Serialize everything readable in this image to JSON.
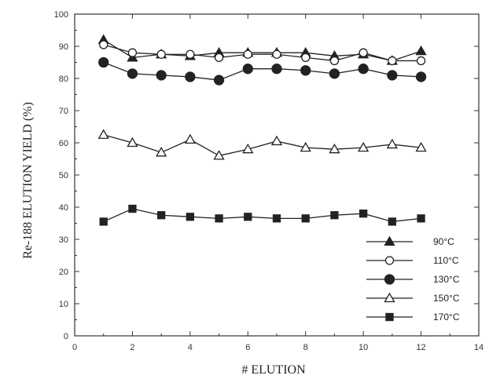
{
  "chart_data": {
    "type": "line",
    "xlabel": "# ELUTION",
    "ylabel": "Re-188 ELUTION YIELD (%)",
    "xlim": [
      0,
      14
    ],
    "ylim": [
      0,
      100
    ],
    "x_ticks": [
      "0",
      "2",
      "4",
      "6",
      "8",
      "10",
      "12",
      "14"
    ],
    "y_ticks": [
      "0",
      "10",
      "20",
      "30",
      "40",
      "50",
      "60",
      "70",
      "80",
      "90",
      "100"
    ],
    "grid": false,
    "legend_position": "bottom-right",
    "x": [
      1,
      2,
      3,
      4,
      5,
      6,
      7,
      8,
      9,
      10,
      11,
      12
    ],
    "series": [
      {
        "name": "90°C",
        "marker": "triangle-filled",
        "color": "#222222",
        "values": [
          92,
          86.5,
          87.5,
          87,
          88,
          88,
          88,
          88,
          87,
          87.5,
          85.5,
          88.5
        ]
      },
      {
        "name": "110°C",
        "marker": "circle-open",
        "color": "#222222",
        "values": [
          90.5,
          88,
          87.5,
          87.5,
          86.5,
          87.5,
          87.5,
          86.5,
          85.5,
          88,
          85.5,
          85.5
        ]
      },
      {
        "name": "130°C",
        "marker": "circle-filled",
        "color": "#222222",
        "values": [
          85,
          81.5,
          81,
          80.5,
          79.5,
          83,
          83,
          82.5,
          81.5,
          83,
          81,
          80.5
        ]
      },
      {
        "name": "150°C",
        "marker": "triangle-open",
        "color": "#222222",
        "values": [
          62.5,
          60,
          57,
          61,
          56,
          58,
          60.5,
          58.5,
          58,
          58.5,
          59.5,
          58.5
        ]
      },
      {
        "name": "170°C",
        "marker": "square-filled",
        "color": "#222222",
        "values": [
          35.5,
          39.5,
          37.5,
          37,
          36.5,
          37,
          36.5,
          36.5,
          37.5,
          38,
          35.5,
          36.5
        ]
      }
    ]
  }
}
